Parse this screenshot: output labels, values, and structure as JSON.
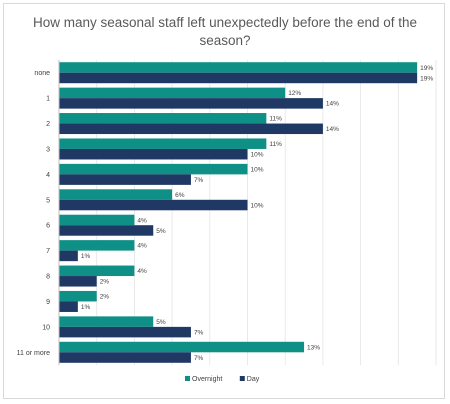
{
  "chart_data": {
    "type": "bar",
    "orientation": "horizontal",
    "title": "How many seasonal staff left unexpectedly before the end of the season?",
    "categories": [
      "none",
      "1",
      "2",
      "3",
      "4",
      "5",
      "6",
      "7",
      "8",
      "9",
      "10",
      "11 or more"
    ],
    "series": [
      {
        "name": "Overnight",
        "color": "#0f9087",
        "values": [
          19,
          12,
          11,
          11,
          10,
          6,
          4,
          4,
          4,
          2,
          5,
          13
        ],
        "labels": [
          "19%",
          "12%",
          "11%",
          "11%",
          "10%",
          "6%",
          "4%",
          "4%",
          "4%",
          "2%",
          "5%",
          "13%"
        ]
      },
      {
        "name": "Day",
        "color": "#1f3864",
        "values": [
          19,
          14,
          14,
          10,
          7,
          10,
          5,
          1,
          2,
          1,
          7,
          7
        ],
        "labels": [
          "19%",
          "14%",
          "14%",
          "10%",
          "7%",
          "10%",
          "5%",
          "1%",
          "2%",
          "1%",
          "7%",
          "7%"
        ]
      }
    ],
    "xlim": [
      0,
      20
    ],
    "grid": true,
    "legend": "bottom"
  }
}
